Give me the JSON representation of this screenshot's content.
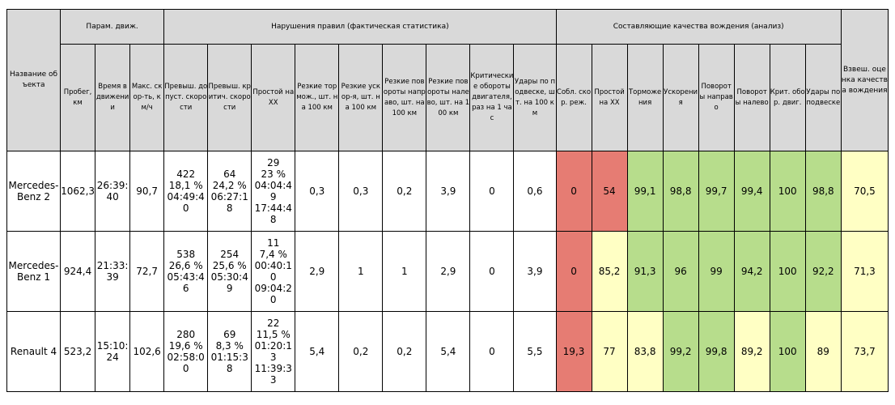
{
  "groups": {
    "name": "Название объекта",
    "motion": "Парам. движ.",
    "violations": "Нарушения правил (фактическая статистика)",
    "quality": "Составляющие качества вождения (анализ)",
    "score": "Взвеш. оценка качества вождения"
  },
  "columns": [
    "Пробег, км",
    "Время в движении",
    "Макс. скор-ть, км/ч",
    "Превыш. допуст. скорости",
    "Превыш. критич. скорости",
    "Простой на ХХ",
    "Резкие тормож., шт. на 100 км",
    "Резкие ускор-я, шт. на 100 км",
    "Резкие повороты направо, шт. на 100 км",
    "Резкие повороты налево, шт. на 100 км",
    "Критические обороты двигателя, раз на 1 час",
    "Удары по подвеске, шт. на 100 км",
    "Собл. скор. реж.",
    "Простой на ХХ",
    "Торможения",
    "Ускорения",
    "Повороты направо",
    "Повороты налево",
    "Крит. обор. двиг.",
    "Удары по подвеске"
  ],
  "rows": [
    {
      "name": "Mercedes-Benz 2",
      "mileage": "1062,3",
      "time": "26:39:40",
      "maxspeed": "90,7",
      "over_allowed": [
        "422",
        "18,1 %",
        "04:49:40"
      ],
      "over_critical": [
        "64",
        "24,2 %",
        "06:27:18"
      ],
      "idle": [
        "29",
        "23 %",
        "04:04:49",
        "17:44:48"
      ],
      "brake": "0,3",
      "accel": "0,3",
      "turn_right": "0,2",
      "turn_left": "3,9",
      "crit_rpm": "0",
      "shocks": "0,6",
      "q_speed": "0",
      "q_idle": "54",
      "q_brake": "99,1",
      "q_accel": "98,8",
      "q_right": "99,7",
      "q_left": "99,4",
      "q_rpm": "100",
      "q_shocks": "98,8",
      "score": "70,5"
    },
    {
      "name": "Mercedes-Benz 1",
      "mileage": "924,4",
      "time": "21:33:39",
      "maxspeed": "72,7",
      "over_allowed": [
        "538",
        "26,6 %",
        "05:43:46"
      ],
      "over_critical": [
        "254",
        "25,6 %",
        "05:30:49"
      ],
      "idle": [
        "11",
        "7,4 %",
        "00:40:10",
        "09:04:20"
      ],
      "brake": "2,9",
      "accel": "1",
      "turn_right": "1",
      "turn_left": "2,9",
      "crit_rpm": "0",
      "shocks": "3,9",
      "q_speed": "0",
      "q_idle": "85,2",
      "q_brake": "91,3",
      "q_accel": "96",
      "q_right": "99",
      "q_left": "94,2",
      "q_rpm": "100",
      "q_shocks": "92,2",
      "score": "71,3"
    },
    {
      "name": "Renault 4",
      "mileage": "523,2",
      "time": "15:10:24",
      "maxspeed": "102,6",
      "over_allowed": [
        "280",
        "19,6 %",
        "02:58:00"
      ],
      "over_critical": [
        "69",
        "8,3 %",
        "01:15:38"
      ],
      "idle": [
        "22",
        "11,5 %",
        "01:20:13",
        "11:39:33"
      ],
      "brake": "5,4",
      "accel": "0,2",
      "turn_right": "0,2",
      "turn_left": "5,4",
      "crit_rpm": "0",
      "shocks": "5,5",
      "q_speed": "19,3",
      "q_idle": "77",
      "q_brake": "83,8",
      "q_accel": "99,2",
      "q_right": "99,8",
      "q_left": "89,2",
      "q_rpm": "100",
      "q_shocks": "89",
      "score": "73,7"
    }
  ],
  "colors": {
    "header_bg": "#d9d9d9",
    "bad": "#e67c73",
    "good": "#b7dd8c",
    "medium": "#ffffc4"
  }
}
